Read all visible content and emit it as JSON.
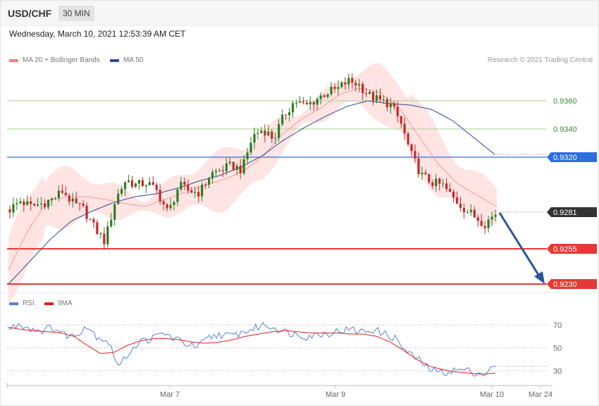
{
  "header": {
    "symbol": "USD/CHF",
    "timeframe": "30 MIN"
  },
  "datetime": "Wednesday, March 10, 2021 12:53:39 AM CET",
  "credit": "Research © 2021 Trading Central",
  "legend_main": [
    {
      "label": "MA 20 + Bollinger Bands",
      "color": "#f08080"
    },
    {
      "label": "MA 50",
      "color": "#2a4d8f"
    }
  ],
  "legend_rsi": [
    {
      "label": "RSI",
      "color": "#5b7fd6"
    },
    {
      "label": "9MA",
      "color": "#e02020"
    }
  ],
  "colors": {
    "up": "#2e7d1f",
    "down": "#c62828",
    "resistance": "#2e6fdc",
    "support": "#e53935",
    "price": "#333333",
    "arrow": "#2a5597",
    "green_line": "#a9d18e",
    "band_fill": "#ffe4e4"
  },
  "chart_data": [
    {
      "type": "candlestick",
      "title": "USD/CHF",
      "xlabel": "",
      "ylabel": "",
      "ylim": [
        0.9225,
        0.9395
      ],
      "grid": false,
      "legend_position": "top-left",
      "x_ticks": [
        "Mar 7",
        "Mar 9",
        "Mar 10",
        "Mar 24"
      ],
      "levels": [
        {
          "value": 0.936,
          "label": "0.9360",
          "style": "green"
        },
        {
          "value": 0.934,
          "label": "0.9340",
          "style": "green"
        },
        {
          "value": 0.932,
          "label": "0.9320",
          "style": "resistance"
        },
        {
          "value": 0.9281,
          "label": "0.9281",
          "style": "price"
        },
        {
          "value": 0.9255,
          "label": "0.9255",
          "style": "support"
        },
        {
          "value": 0.923,
          "label": "0.9230",
          "style": "support"
        }
      ],
      "series": [
        {
          "name": "MA 20 + Bollinger Bands",
          "keypoints": [
            0.924,
            0.9268,
            0.9289,
            0.9292,
            0.9292,
            0.929,
            0.9287,
            0.9285,
            0.929,
            0.9295,
            0.93,
            0.9304,
            0.931,
            0.932,
            0.9336,
            0.9347,
            0.9355,
            0.9365,
            0.9369,
            0.9366,
            0.9355,
            0.9335,
            0.9315,
            0.9301,
            0.9293,
            0.9285
          ]
        },
        {
          "name": "MA 50",
          "keypoints": [
            0.923,
            0.9246,
            0.9262,
            0.9275,
            0.9282,
            0.9288,
            0.9292,
            0.9294,
            0.9298,
            0.9303,
            0.9307,
            0.9313,
            0.9321,
            0.9332,
            0.9341,
            0.9349,
            0.9356,
            0.936,
            0.9358,
            0.9357,
            0.9354,
            0.9346,
            0.9334,
            0.9322
          ]
        }
      ],
      "price_keypoints": [
        0.9283,
        0.9289,
        0.9285,
        0.9287,
        0.929,
        0.9296,
        0.9287,
        0.9283,
        0.927,
        0.926,
        0.929,
        0.9304,
        0.93,
        0.9302,
        0.9295,
        0.928,
        0.93,
        0.9296,
        0.9295,
        0.9308,
        0.9311,
        0.9314,
        0.9311,
        0.9335,
        0.934,
        0.9333,
        0.935,
        0.936,
        0.9356,
        0.9361,
        0.9366,
        0.9368,
        0.9374,
        0.9372,
        0.9364,
        0.936,
        0.9358,
        0.9345,
        0.9322,
        0.9307,
        0.9302,
        0.93,
        0.9291,
        0.9284,
        0.9278,
        0.9273,
        0.928
      ]
    },
    {
      "type": "line",
      "title": "RSI",
      "ylim": [
        20,
        80
      ],
      "y_ticks": [
        70,
        50,
        30
      ],
      "series": [
        {
          "name": "RSI",
          "keypoints": [
            66,
            71,
            67,
            65,
            68,
            62,
            60,
            70,
            60,
            56,
            33,
            48,
            56,
            58,
            63,
            58,
            54,
            50,
            58,
            62,
            60,
            63,
            66,
            70,
            68,
            64,
            62,
            60,
            62,
            63,
            65,
            66,
            64,
            66,
            62,
            58,
            46,
            40,
            32,
            28,
            30,
            31,
            29,
            27,
            34
          ]
        },
        {
          "name": "9MA",
          "keypoints": [
            68,
            66,
            65,
            64,
            63,
            60,
            52,
            45,
            46,
            52,
            56,
            58,
            58,
            57,
            55,
            54,
            55,
            57,
            60,
            62,
            64,
            65,
            64,
            63,
            63,
            63,
            62,
            62,
            60,
            55,
            48,
            40,
            34,
            31,
            29,
            28,
            27,
            28
          ]
        }
      ]
    }
  ]
}
